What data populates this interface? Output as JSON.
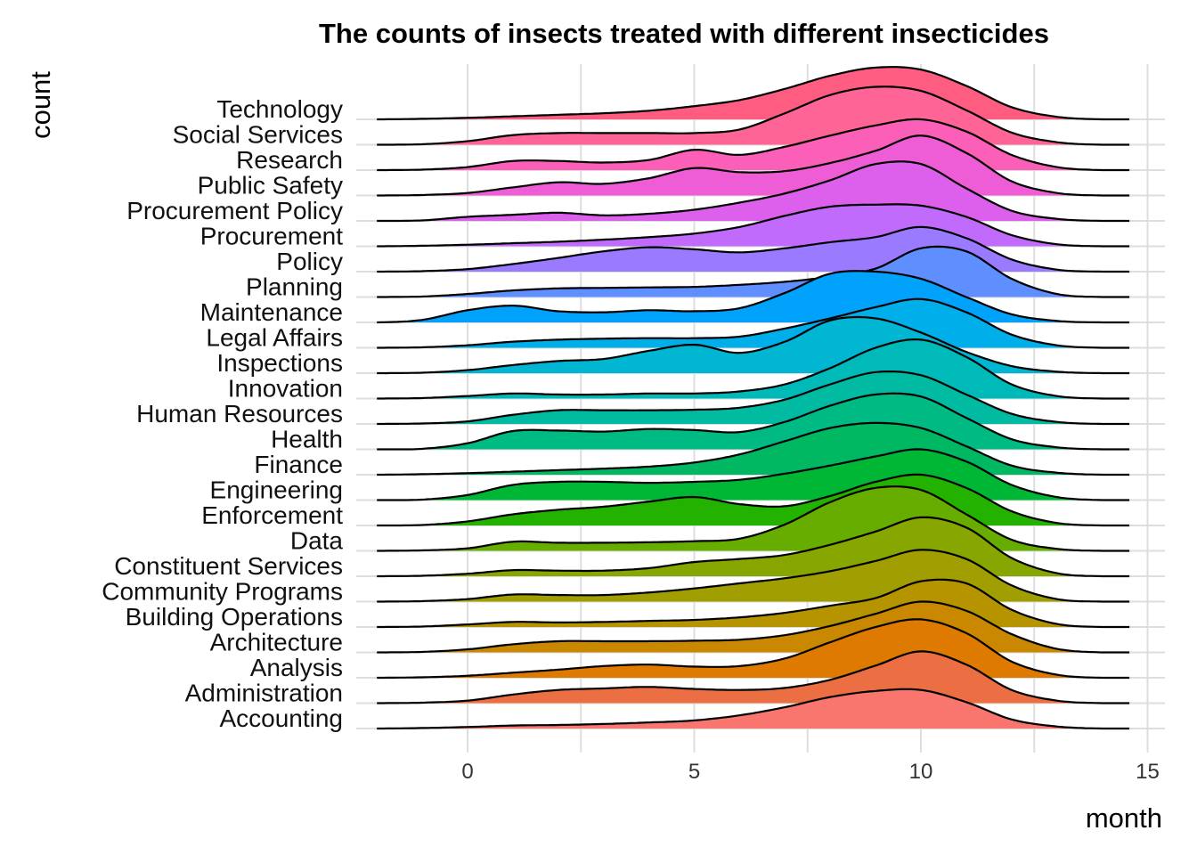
{
  "chart_data": {
    "type": "ridgeline",
    "title": "The counts of insects treated with different insecticides",
    "xlabel": "month",
    "ylabel": "count",
    "xlim": [
      -2.0,
      14.7
    ],
    "xticks": [
      0,
      5,
      10,
      15
    ],
    "grid": true,
    "legend": "none",
    "x_grid": [
      -2,
      -1,
      0,
      1,
      2,
      3,
      4,
      5,
      6,
      7,
      8,
      9,
      10,
      11,
      12,
      13,
      14,
      14.6
    ],
    "series": [
      {
        "name": "Accounting",
        "color": "#F8766D",
        "values": [
          0.0,
          0.01,
          0.03,
          0.06,
          0.07,
          0.09,
          0.12,
          0.16,
          0.26,
          0.42,
          0.62,
          0.74,
          0.76,
          0.52,
          0.18,
          0.04,
          0.0,
          0.0
        ]
      },
      {
        "name": "Administration",
        "color": "#EC6E43",
        "values": [
          0.0,
          0.01,
          0.05,
          0.17,
          0.26,
          0.29,
          0.32,
          0.28,
          0.26,
          0.3,
          0.46,
          0.74,
          1.02,
          0.76,
          0.26,
          0.05,
          0.0,
          0.0
        ]
      },
      {
        "name": "Analysis",
        "color": "#DF7A00",
        "values": [
          0.0,
          0.01,
          0.04,
          0.1,
          0.16,
          0.23,
          0.26,
          0.22,
          0.23,
          0.38,
          0.7,
          1.0,
          1.15,
          0.88,
          0.32,
          0.06,
          0.0,
          0.0
        ]
      },
      {
        "name": "Architecture",
        "color": "#C98800",
        "values": [
          0.0,
          0.01,
          0.06,
          0.16,
          0.22,
          0.22,
          0.22,
          0.23,
          0.25,
          0.34,
          0.52,
          0.76,
          1.0,
          0.82,
          0.36,
          0.07,
          0.0,
          0.0
        ]
      },
      {
        "name": "Building Operations",
        "color": "#B69400",
        "values": [
          0.0,
          0.01,
          0.05,
          0.1,
          0.09,
          0.1,
          0.12,
          0.14,
          0.19,
          0.28,
          0.42,
          0.57,
          0.9,
          0.86,
          0.34,
          0.06,
          0.0,
          0.0
        ]
      },
      {
        "name": "Community Programs",
        "color": "#A09E00",
        "values": [
          0.0,
          0.01,
          0.05,
          0.14,
          0.13,
          0.13,
          0.18,
          0.26,
          0.36,
          0.46,
          0.6,
          0.8,
          1.02,
          0.84,
          0.32,
          0.05,
          0.0,
          0.0
        ]
      },
      {
        "name": "Constituent Services",
        "color": "#87A600",
        "values": [
          0.0,
          0.01,
          0.05,
          0.12,
          0.11,
          0.11,
          0.16,
          0.28,
          0.34,
          0.42,
          0.62,
          0.88,
          1.16,
          0.96,
          0.36,
          0.06,
          0.0,
          0.0
        ]
      },
      {
        "name": "Data",
        "color": "#66AD00",
        "values": [
          0.0,
          0.01,
          0.05,
          0.18,
          0.16,
          0.16,
          0.17,
          0.19,
          0.24,
          0.52,
          0.96,
          1.24,
          1.2,
          0.72,
          0.22,
          0.04,
          0.0,
          0.0
        ]
      },
      {
        "name": "Enforcement",
        "color": "#23B200",
        "values": [
          0.0,
          0.01,
          0.08,
          0.22,
          0.31,
          0.37,
          0.47,
          0.56,
          0.42,
          0.38,
          0.58,
          0.86,
          1.0,
          0.74,
          0.28,
          0.05,
          0.0,
          0.0
        ]
      },
      {
        "name": "Engineering",
        "color": "#00B635",
        "values": [
          0.0,
          0.01,
          0.1,
          0.3,
          0.36,
          0.36,
          0.34,
          0.36,
          0.4,
          0.52,
          0.68,
          0.86,
          1.0,
          0.76,
          0.3,
          0.06,
          0.0,
          0.0
        ]
      },
      {
        "name": "Finance",
        "color": "#00B862",
        "values": [
          0.0,
          0.01,
          0.03,
          0.06,
          0.09,
          0.12,
          0.16,
          0.24,
          0.4,
          0.66,
          0.92,
          1.02,
          0.92,
          0.56,
          0.18,
          0.04,
          0.0,
          0.0
        ]
      },
      {
        "name": "Health",
        "color": "#00BA83",
        "values": [
          0.0,
          0.01,
          0.12,
          0.36,
          0.37,
          0.35,
          0.4,
          0.38,
          0.34,
          0.54,
          0.86,
          1.08,
          1.04,
          0.62,
          0.2,
          0.04,
          0.0,
          0.0
        ]
      },
      {
        "name": "Human Resources",
        "color": "#00BBA1",
        "values": [
          0.0,
          0.01,
          0.05,
          0.18,
          0.27,
          0.27,
          0.27,
          0.28,
          0.32,
          0.48,
          0.78,
          1.02,
          0.96,
          0.58,
          0.2,
          0.04,
          0.0,
          0.0
        ]
      },
      {
        "name": "Innovation",
        "color": "#00BAB9",
        "values": [
          0.0,
          0.01,
          0.05,
          0.1,
          0.08,
          0.08,
          0.1,
          0.1,
          0.14,
          0.28,
          0.6,
          1.0,
          1.16,
          0.82,
          0.28,
          0.05,
          0.0,
          0.0
        ]
      },
      {
        "name": "Inspections",
        "color": "#00B6D2",
        "values": [
          0.0,
          0.01,
          0.06,
          0.16,
          0.24,
          0.28,
          0.44,
          0.56,
          0.4,
          0.62,
          1.04,
          1.08,
          0.8,
          0.42,
          0.14,
          0.03,
          0.0,
          0.0
        ]
      },
      {
        "name": "Legal Affairs",
        "color": "#00AEE9",
        "values": [
          0.0,
          0.01,
          0.05,
          0.12,
          0.16,
          0.18,
          0.19,
          0.19,
          0.22,
          0.38,
          0.58,
          0.8,
          0.96,
          0.7,
          0.26,
          0.05,
          0.0,
          0.0
        ]
      },
      {
        "name": "Maintenance",
        "color": "#00A2FC",
        "values": [
          0.0,
          0.05,
          0.24,
          0.33,
          0.22,
          0.2,
          0.24,
          0.22,
          0.28,
          0.58,
          0.96,
          1.0,
          0.86,
          0.5,
          0.16,
          0.03,
          0.0,
          0.0
        ]
      },
      {
        "name": "Planning",
        "color": "#5F8FFF",
        "values": [
          0.0,
          0.01,
          0.06,
          0.13,
          0.17,
          0.18,
          0.19,
          0.2,
          0.24,
          0.3,
          0.4,
          0.56,
          0.96,
          0.9,
          0.36,
          0.06,
          0.0,
          0.0
        ]
      },
      {
        "name": "Policy",
        "color": "#9A7BFF",
        "values": [
          0.0,
          0.01,
          0.05,
          0.15,
          0.27,
          0.4,
          0.48,
          0.44,
          0.38,
          0.46,
          0.58,
          0.68,
          0.88,
          0.66,
          0.24,
          0.04,
          0.0,
          0.0
        ]
      },
      {
        "name": "Procurement",
        "color": "#C06BFC",
        "values": [
          0.0,
          0.01,
          0.03,
          0.06,
          0.09,
          0.13,
          0.18,
          0.25,
          0.38,
          0.6,
          0.78,
          0.82,
          0.8,
          0.58,
          0.22,
          0.04,
          0.0,
          0.0
        ]
      },
      {
        "name": "Procurement Policy",
        "color": "#DD60EC",
        "values": [
          0.0,
          0.01,
          0.08,
          0.12,
          0.16,
          0.11,
          0.14,
          0.22,
          0.36,
          0.54,
          0.8,
          1.12,
          1.12,
          0.64,
          0.2,
          0.04,
          0.0,
          0.0
        ]
      },
      {
        "name": "Public Safety",
        "color": "#EF5DD6",
        "values": [
          0.0,
          0.01,
          0.05,
          0.16,
          0.26,
          0.23,
          0.34,
          0.54,
          0.46,
          0.48,
          0.64,
          0.88,
          1.18,
          0.84,
          0.28,
          0.05,
          0.0,
          0.0
        ]
      },
      {
        "name": "Research",
        "color": "#FB5FB8",
        "values": [
          0.0,
          0.01,
          0.06,
          0.18,
          0.18,
          0.15,
          0.2,
          0.4,
          0.3,
          0.46,
          0.68,
          0.88,
          1.0,
          0.76,
          0.3,
          0.06,
          0.0,
          0.0
        ]
      },
      {
        "name": "Social Services",
        "color": "#FF6496",
        "values": [
          0.0,
          0.01,
          0.07,
          0.19,
          0.23,
          0.23,
          0.23,
          0.23,
          0.3,
          0.62,
          0.98,
          1.14,
          1.06,
          0.68,
          0.24,
          0.05,
          0.0,
          0.0
        ]
      },
      {
        "name": "Technology",
        "color": "#FF5C82",
        "values": [
          0.0,
          0.01,
          0.03,
          0.06,
          0.09,
          0.12,
          0.17,
          0.26,
          0.38,
          0.6,
          0.86,
          1.02,
          0.98,
          0.66,
          0.24,
          0.05,
          0.0,
          0.0
        ]
      }
    ]
  }
}
